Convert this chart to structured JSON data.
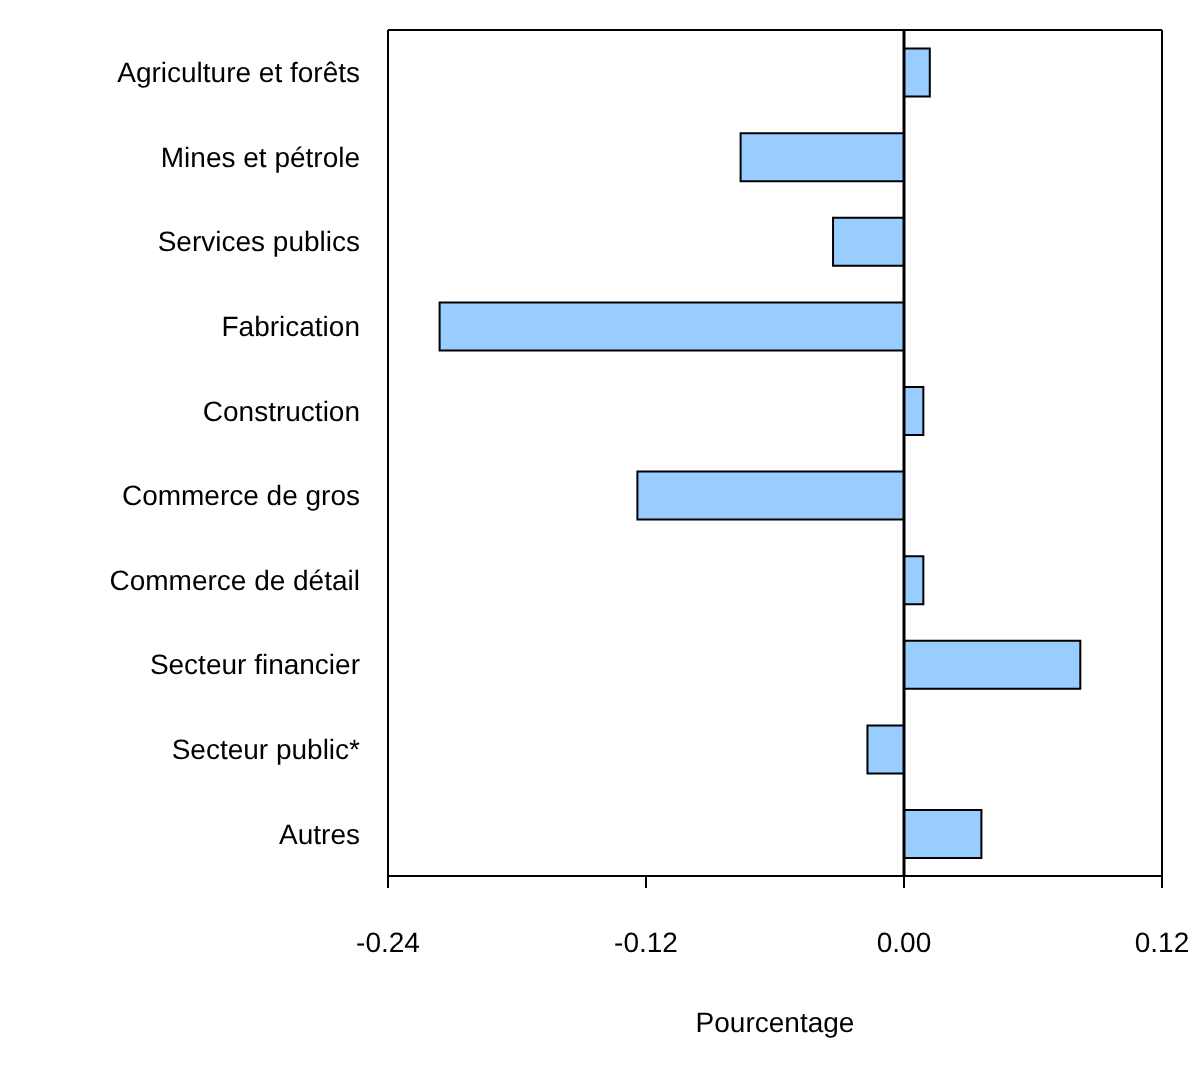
{
  "chart_data": {
    "type": "bar",
    "orientation": "horizontal",
    "xlabel": "Pourcentage",
    "categories": [
      "Agriculture et forêts",
      "Mines et pétrole",
      "Services publics",
      "Fabrication",
      "Construction",
      "Commerce de gros",
      "Commerce de détail",
      "Secteur financier",
      "Secteur public*",
      "Autres"
    ],
    "values": [
      0.012,
      -0.076,
      -0.033,
      -0.216,
      0.009,
      -0.124,
      0.009,
      0.082,
      -0.017,
      0.036
    ],
    "color": "#99ccff",
    "xlim": [
      -0.24,
      0.12
    ],
    "xticks": [
      {
        "value": -0.24,
        "label": "-0.24"
      },
      {
        "value": -0.12,
        "label": "-0.12"
      },
      {
        "value": 0,
        "label": "0.00"
      },
      {
        "value": 0.12,
        "label": "0.12"
      }
    ],
    "legend": false
  }
}
